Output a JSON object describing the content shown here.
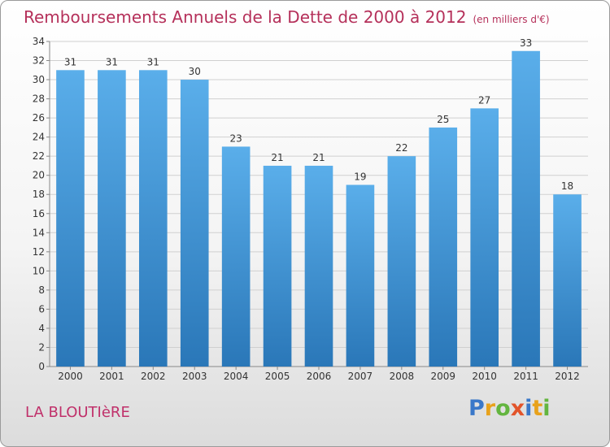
{
  "header": {
    "title": "Remboursements Annuels de la Dette de 2000 à 2012",
    "unit": "(en milliers d'€)"
  },
  "footer": {
    "commune": "LA BLOUTIèRE",
    "logo": "Proxiti"
  },
  "colors": {
    "bar_top": "#5aaeea",
    "bar_bottom": "#2a77b8",
    "title": "#b5305a",
    "grid": "#d0d0d0"
  },
  "chart_data": {
    "type": "bar",
    "title": "Remboursements Annuels de la Dette de 2000 à 2012",
    "categories": [
      "2000",
      "2001",
      "2002",
      "2003",
      "2004",
      "2005",
      "2006",
      "2007",
      "2008",
      "2009",
      "2010",
      "2011",
      "2012"
    ],
    "values": [
      31,
      31,
      31,
      30,
      23,
      21,
      21,
      19,
      22,
      25,
      27,
      33,
      18
    ],
    "ylim": [
      0,
      34
    ],
    "yticks": [
      0,
      2,
      4,
      6,
      8,
      10,
      12,
      14,
      16,
      18,
      20,
      22,
      24,
      26,
      28,
      30,
      32,
      34
    ],
    "grid": true,
    "xlabel": "",
    "ylabel": ""
  }
}
